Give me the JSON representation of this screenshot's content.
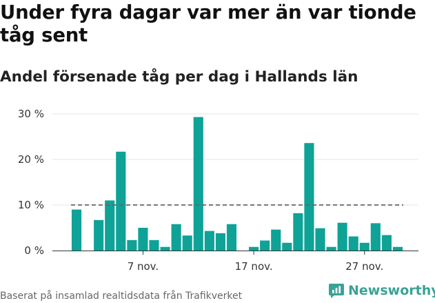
{
  "header": {
    "title": "Under fyra dagar var mer än var tionde tåg sent",
    "subtitle": "Andel försenade tåg per dag i Hallands län"
  },
  "footer": {
    "source": "Baserat på insamlad realtidsdata från Trafikverket",
    "brand": "Newsworthy"
  },
  "colors": {
    "bar": "#0fa297",
    "reference_line": "#666666",
    "grid": "#e6e6e6",
    "brand": "#3aa296"
  },
  "chart_data": {
    "type": "bar",
    "title": "Under fyra dagar var mer än var tionde tåg sent",
    "subtitle": "Andel försenade tåg per dag i Hallands län",
    "unit": "%",
    "x": [
      1,
      2,
      3,
      4,
      5,
      6,
      7,
      8,
      9,
      10,
      11,
      12,
      13,
      14,
      15,
      16,
      17,
      18,
      19,
      20,
      21,
      22,
      23,
      24,
      25,
      26,
      27,
      28,
      29,
      30
    ],
    "values": [
      9.0,
      null,
      6.7,
      11.0,
      21.7,
      2.3,
      5.0,
      2.3,
      0.8,
      5.8,
      3.3,
      29.3,
      4.3,
      3.8,
      5.8,
      null,
      0.8,
      2.2,
      4.6,
      1.7,
      8.2,
      23.6,
      4.9,
      0.8,
      6.1,
      3.1,
      1.7,
      6.0,
      3.4,
      0.8
    ],
    "xticks": [
      {
        "x": 7,
        "label": "7 nov."
      },
      {
        "x": 17,
        "label": "17 nov."
      },
      {
        "x": 27,
        "label": "27 nov."
      }
    ],
    "yticks": [
      {
        "value": 0,
        "label": "0 %"
      },
      {
        "value": 10,
        "label": "10 %"
      },
      {
        "value": 20,
        "label": "20 %"
      },
      {
        "value": 30,
        "label": "30 %"
      }
    ],
    "ylim": [
      0,
      30
    ],
    "reference_line": 10,
    "grid": true
  }
}
